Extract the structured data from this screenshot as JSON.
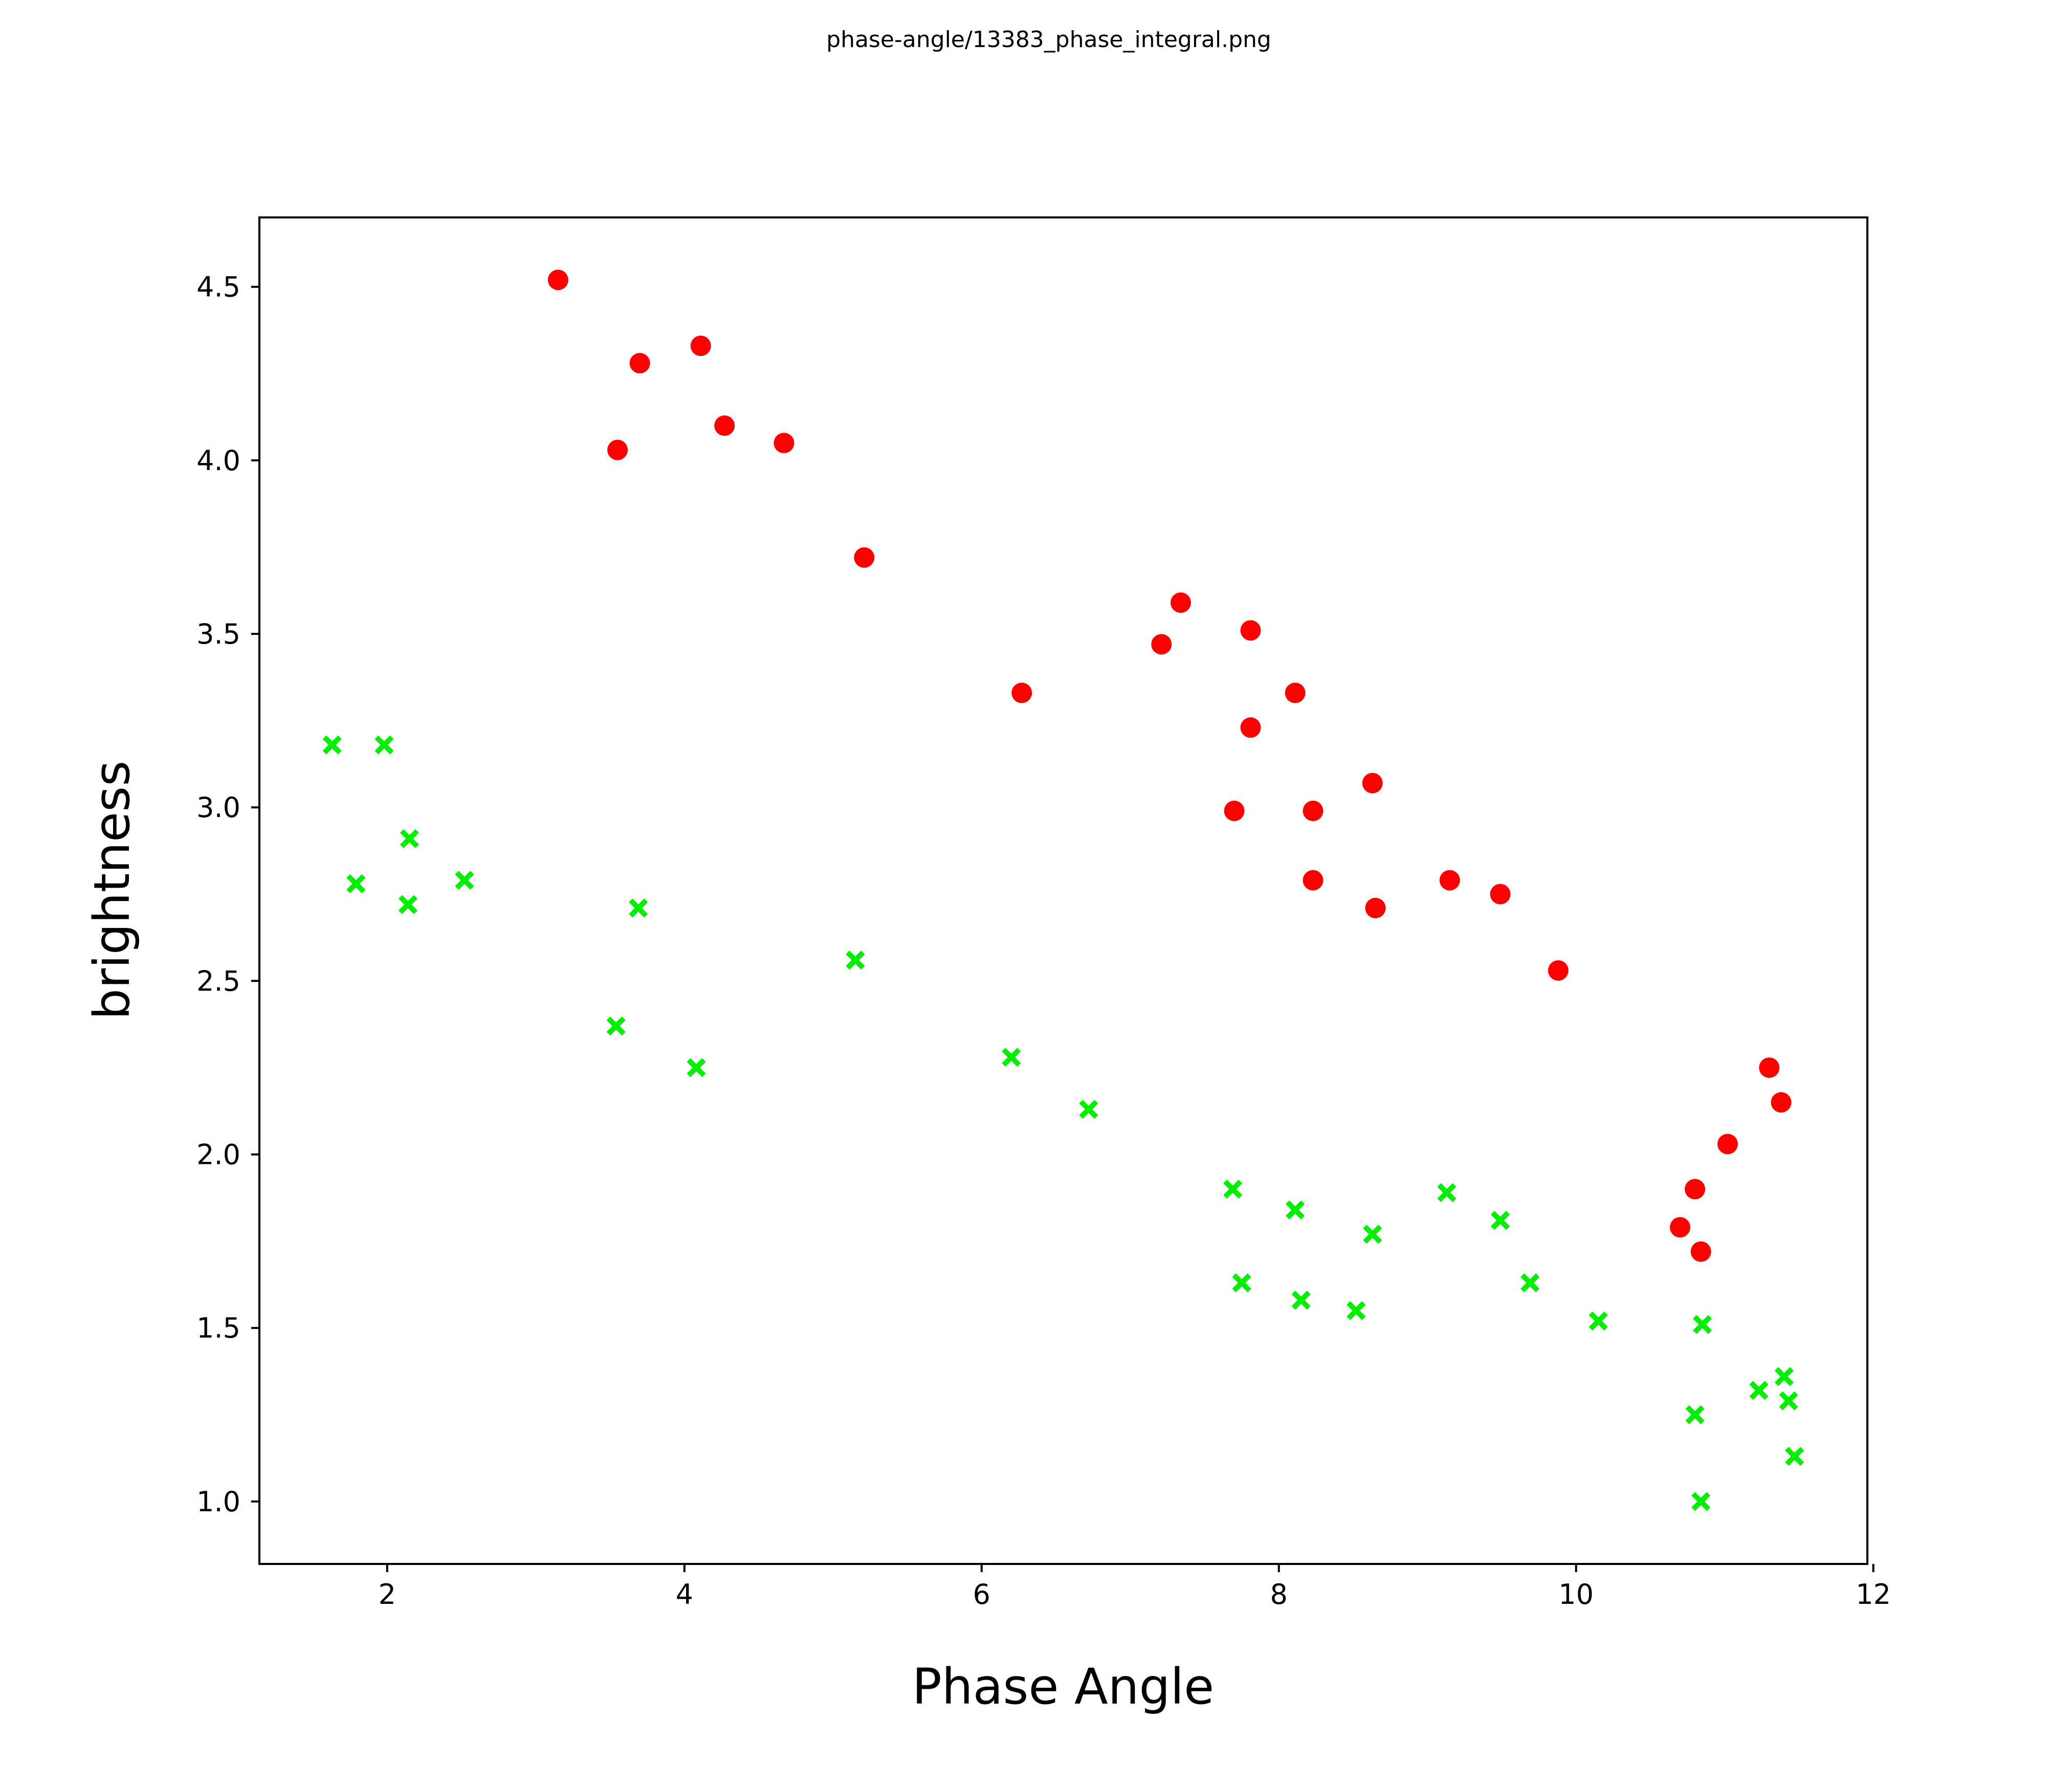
{
  "title": "phase-angle/13383_phase_integral.png",
  "chart_data": {
    "type": "scatter",
    "title": "phase-angle/13383_phase_integral.png",
    "xlabel": "Phase Angle",
    "ylabel": "brightness",
    "xlim": [
      1.14,
      11.96
    ],
    "ylim": [
      0.82,
      4.7
    ],
    "xticks": [
      2,
      4,
      6,
      8,
      10,
      12
    ],
    "yticks": [
      1.0,
      1.5,
      2.0,
      2.5,
      3.0,
      3.5,
      4.0,
      4.5
    ],
    "grid": false,
    "legend_position": "none",
    "colors": {
      "red_series": "#FF0000",
      "green_series": "#00EE00",
      "axis": "#000000"
    },
    "series": [
      {
        "name": "red-circles",
        "marker": "circle",
        "color": "#FF0000",
        "points": [
          [
            3.15,
            4.52
          ],
          [
            3.7,
            4.28
          ],
          [
            4.11,
            4.33
          ],
          [
            3.55,
            4.03
          ],
          [
            4.27,
            4.1
          ],
          [
            4.67,
            4.05
          ],
          [
            5.21,
            3.72
          ],
          [
            6.27,
            3.33
          ],
          [
            7.34,
            3.59
          ],
          [
            7.81,
            3.51
          ],
          [
            7.21,
            3.47
          ],
          [
            8.11,
            3.33
          ],
          [
            7.81,
            3.23
          ],
          [
            8.63,
            3.07
          ],
          [
            8.23,
            2.99
          ],
          [
            7.7,
            2.99
          ],
          [
            8.23,
            2.79
          ],
          [
            8.65,
            2.71
          ],
          [
            9.15,
            2.79
          ],
          [
            9.49,
            2.75
          ],
          [
            9.88,
            2.53
          ],
          [
            10.7,
            1.79
          ],
          [
            10.8,
            1.9
          ],
          [
            10.84,
            1.72
          ],
          [
            11.02,
            2.03
          ],
          [
            11.3,
            2.25
          ],
          [
            11.38,
            2.15
          ]
        ]
      },
      {
        "name": "green-crosses",
        "marker": "x",
        "color": "#00EE00",
        "points": [
          [
            1.63,
            3.18
          ],
          [
            1.98,
            3.18
          ],
          [
            2.15,
            2.91
          ],
          [
            1.79,
            2.78
          ],
          [
            2.52,
            2.79
          ],
          [
            2.14,
            2.72
          ],
          [
            3.54,
            2.37
          ],
          [
            3.69,
            2.71
          ],
          [
            4.08,
            2.25
          ],
          [
            5.15,
            2.56
          ],
          [
            6.2,
            2.28
          ],
          [
            6.72,
            2.13
          ],
          [
            7.69,
            1.9
          ],
          [
            7.75,
            1.63
          ],
          [
            8.11,
            1.84
          ],
          [
            8.15,
            1.58
          ],
          [
            8.52,
            1.55
          ],
          [
            8.63,
            1.77
          ],
          [
            9.13,
            1.89
          ],
          [
            9.49,
            1.81
          ],
          [
            9.69,
            1.63
          ],
          [
            10.15,
            1.52
          ],
          [
            10.85,
            1.51
          ],
          [
            10.8,
            1.25
          ],
          [
            10.84,
            1.0
          ],
          [
            11.23,
            1.32
          ],
          [
            11.4,
            1.36
          ],
          [
            11.43,
            1.29
          ],
          [
            11.47,
            1.13
          ]
        ]
      }
    ]
  }
}
